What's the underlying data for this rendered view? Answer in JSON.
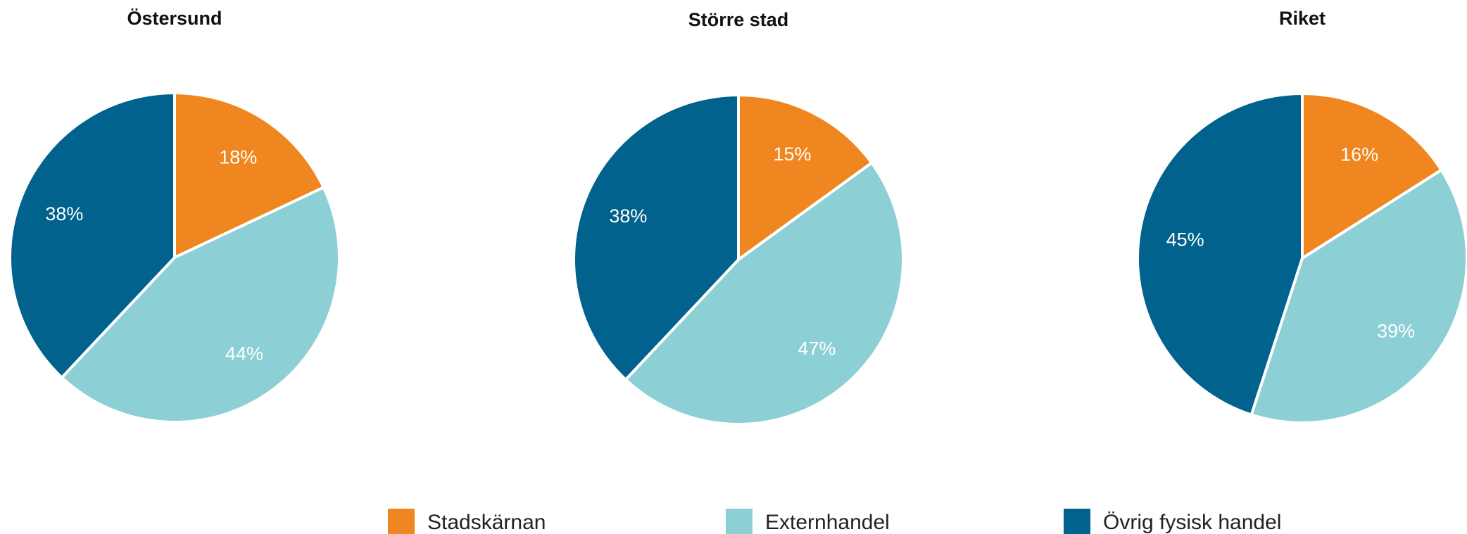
{
  "chart_data": [
    {
      "type": "pie",
      "title": "Östersund",
      "series": [
        {
          "name": "Stadskärnan",
          "value": 18,
          "label": "18%"
        },
        {
          "name": "Externhandel",
          "value": 44,
          "label": "44%"
        },
        {
          "name": "Övrig fysisk handel",
          "value": 38,
          "label": "38%"
        }
      ]
    },
    {
      "type": "pie",
      "title": "Större stad",
      "series": [
        {
          "name": "Stadskärnan",
          "value": 15,
          "label": "15%"
        },
        {
          "name": "Externhandel",
          "value": 47,
          "label": "47%"
        },
        {
          "name": "Övrig fysisk handel",
          "value": 38,
          "label": "38%"
        }
      ]
    },
    {
      "type": "pie",
      "title": "Riket",
      "series": [
        {
          "name": "Stadskärnan",
          "value": 16,
          "label": "16%"
        },
        {
          "name": "Externhandel",
          "value": 39,
          "label": "39%"
        },
        {
          "name": "Övrig fysisk handel",
          "value": 45,
          "label": "45%"
        }
      ]
    }
  ],
  "legend": {
    "placement": "bottom",
    "items": [
      {
        "label": "Stadskärnan",
        "color": "#f0861f"
      },
      {
        "label": "Externhandel",
        "color": "#8ccfd4"
      },
      {
        "label": "Övrig fysisk handel",
        "color": "#00628d"
      }
    ]
  }
}
